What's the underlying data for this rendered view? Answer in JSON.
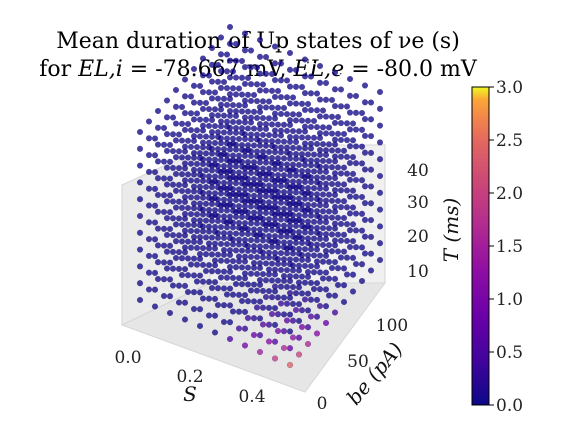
{
  "chart_data": {
    "type": "scatter3d",
    "title": {
      "line1": "Mean duration of Up states of νe (s)",
      "line2_prefix": "for ",
      "line2_eli_label": "EL,i",
      "line2_eli_value": " = -78.667 mV, ",
      "line2_ele_label": "EL,e",
      "line2_ele_value": " = -80.0 mV"
    },
    "axes": {
      "x": {
        "label": "S",
        "range": [
          0.0,
          0.5
        ],
        "ticks": [
          "0.0",
          "0.2",
          "0.4"
        ]
      },
      "y": {
        "label": "be (pA)",
        "range": [
          0,
          120
        ],
        "ticks": [
          "0",
          "50",
          "100"
        ]
      },
      "z": {
        "label": "T (ms)",
        "range": [
          5,
          40
        ],
        "ticks": [
          "10",
          "20",
          "30",
          "40"
        ]
      }
    },
    "grid": {
      "S_values": [
        0.0,
        0.05,
        0.1,
        0.15,
        0.2,
        0.25,
        0.3,
        0.35,
        0.4,
        0.45,
        0.5
      ],
      "be_values": [
        0,
        12,
        24,
        36,
        48,
        60,
        72,
        84,
        96,
        108,
        120
      ],
      "T_values": [
        5,
        8.5,
        12,
        15.5,
        19,
        22.5,
        26,
        29.5,
        33,
        36.5,
        40
      ]
    },
    "colorbar": {
      "colormap": "plasma",
      "range": [
        0.0,
        3.0
      ],
      "ticks": [
        "0.0",
        "0.5",
        "1.0",
        "1.5",
        "2.0",
        "2.5",
        "3.0"
      ]
    },
    "highlight_note": "Elevated durations at bottom layer (T=5 ms) for S between 0.3 and 0.5 and low be"
  }
}
